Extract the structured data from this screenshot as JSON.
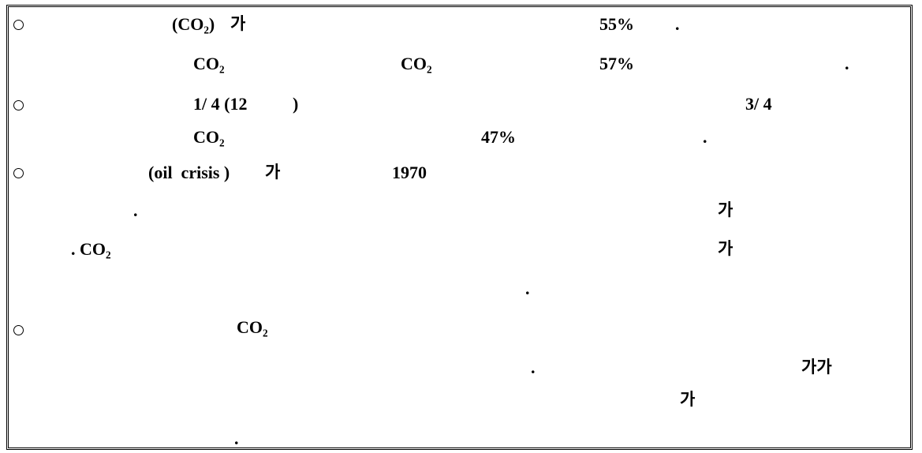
{
  "lines": [
    {
      "segments": [
        {
          "text": "(CO₂)"
        },
        {
          "text": "가",
          "ko": true
        },
        {
          "text": "55%"
        },
        {
          "text": "."
        }
      ]
    },
    {
      "segments": [
        {
          "text": "CO₂"
        },
        {
          "text": "CO₂"
        },
        {
          "text": "57%"
        },
        {
          "text": "."
        }
      ]
    },
    {
      "segments": [
        {
          "text": "1/ 4 (12"
        },
        {
          "text": ")"
        },
        {
          "text": "3/ 4"
        }
      ]
    },
    {
      "segments": [
        {
          "text": "CO₂"
        },
        {
          "text": "47%"
        },
        {
          "text": "."
        }
      ]
    },
    {
      "segments": [
        {
          "text": "(oil  crisis )"
        },
        {
          "text": "가",
          "ko": true
        },
        {
          "text": "1970"
        }
      ]
    },
    {
      "segments": [
        {
          "text": "."
        },
        {
          "text": "가",
          "ko": true
        }
      ]
    },
    {
      "segments": [
        {
          "text": ". CO₂"
        },
        {
          "text": "가",
          "ko": true
        }
      ]
    },
    {
      "segments": [
        {
          "text": "."
        }
      ]
    },
    {
      "segments": [
        {
          "text": "CO₂"
        }
      ]
    },
    {
      "segments": [
        {
          "text": "."
        },
        {
          "text": "가가",
          "ko": true
        }
      ]
    },
    {
      "segments": [
        {
          "text": "가",
          "ko": true
        }
      ]
    },
    {
      "segments": [
        {
          "text": "."
        }
      ]
    }
  ]
}
